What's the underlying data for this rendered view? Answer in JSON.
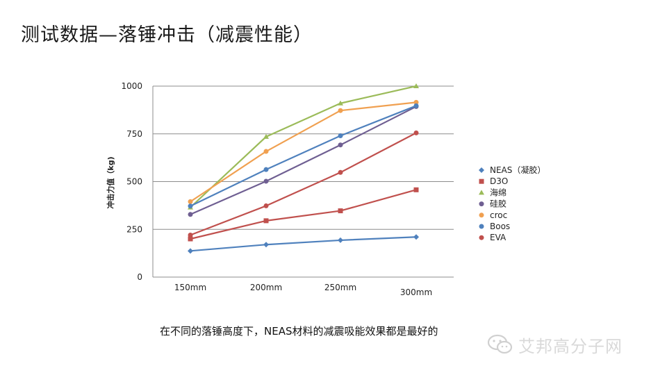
{
  "slide": {
    "title": "测试数据—落锤冲击（减震性能）",
    "caption": "在不同的落锤高度下，NEAS材料的减震吸能效果都是最好的",
    "watermark": "艾邦高分子网"
  },
  "chart_data": {
    "type": "line",
    "title": "",
    "xlabel": "",
    "ylabel": "冲击力值（kg)",
    "categories": [
      "150mm",
      "200mm",
      "250mm",
      "300mm"
    ],
    "ylim": [
      0,
      1000
    ],
    "yticks": [
      0,
      250,
      500,
      750,
      1000
    ],
    "grid": true,
    "legend_position": "right",
    "series": [
      {
        "name": "NEAS（凝胶）",
        "marker": "diamond",
        "color": "#4f81bd",
        "values": [
          137,
          170,
          193,
          210
        ]
      },
      {
        "name": "D3O",
        "marker": "square",
        "color": "#c0504d",
        "values": [
          200,
          295,
          347,
          457
        ]
      },
      {
        "name": "海绵",
        "marker": "triangle",
        "color": "#9bbb59",
        "values": [
          365,
          735,
          910,
          1000
        ]
      },
      {
        "name": "硅胶",
        "marker": "x",
        "color": "#6f5f92",
        "values": [
          328,
          502,
          692,
          893
        ]
      },
      {
        "name": "croc",
        "marker": "star",
        "color": "#f0a050",
        "values": [
          395,
          658,
          872,
          915
        ]
      },
      {
        "name": "Boos",
        "marker": "circle",
        "color": "#4f81bd",
        "values": [
          372,
          563,
          740,
          897
        ]
      },
      {
        "name": "EVA",
        "marker": "plus",
        "color": "#c0504d",
        "values": [
          220,
          373,
          548,
          755
        ]
      }
    ]
  }
}
